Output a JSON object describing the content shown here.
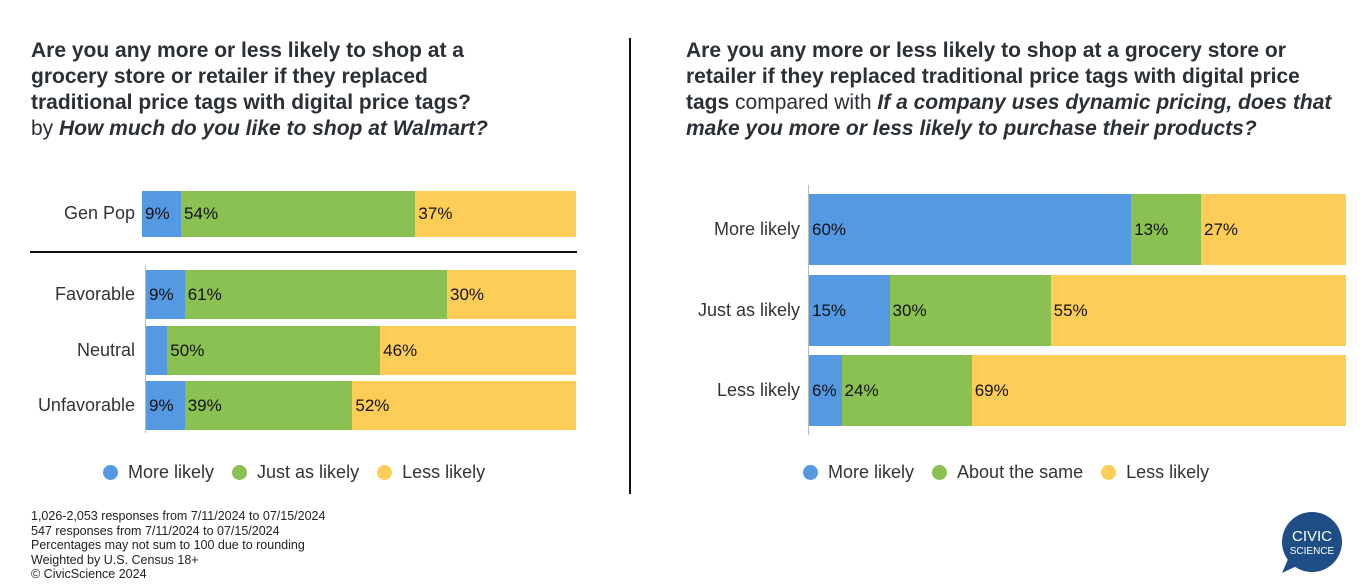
{
  "colors": {
    "more": "#5599e3",
    "same": "#8bc052",
    "less": "#fdcd57",
    "logo": "#1f4e86"
  },
  "left": {
    "title_bold": "Are you any more or less likely to shop at a grocery store or retailer if they replaced traditional price tags with digital price tags?",
    "title_by": "by ",
    "title_italic": "How much do you like to shop at Walmart?",
    "legend": [
      "More likely",
      "Just as likely",
      "Less likely"
    ]
  },
  "right": {
    "title_bold": "Are you any more or less likely to shop at a grocery store or retailer if they replaced traditional price tags with digital price tags",
    "title_mid": " compared with ",
    "title_italic": "If a company uses dynamic pricing, does that make you more or less likely to purchase their products?",
    "legend": [
      "More likely",
      "About the same",
      "Less likely"
    ]
  },
  "chart_data": [
    {
      "type": "bar",
      "orientation": "horizontal",
      "stacked": true,
      "categories": [
        "Gen Pop",
        "Favorable",
        "Neutral",
        "Unfavorable"
      ],
      "series": [
        {
          "name": "More likely",
          "values": [
            9,
            9,
            5,
            9
          ],
          "labels": [
            "9%",
            "9%",
            "",
            "9%"
          ]
        },
        {
          "name": "Just as likely",
          "values": [
            54,
            61,
            50,
            39
          ],
          "labels": [
            "54%",
            "61%",
            "50%",
            "39%"
          ]
        },
        {
          "name": "Less likely",
          "values": [
            37,
            30,
            46,
            52
          ],
          "labels": [
            "37%",
            "30%",
            "46%",
            "52%"
          ]
        }
      ],
      "legend": "bottom"
    },
    {
      "type": "bar",
      "orientation": "horizontal",
      "stacked": true,
      "categories": [
        "More likely",
        "Just as likely",
        "Less likely"
      ],
      "series": [
        {
          "name": "More likely",
          "values": [
            60,
            15,
            6
          ],
          "labels": [
            "60%",
            "15%",
            "6%"
          ]
        },
        {
          "name": "About the same",
          "values": [
            13,
            30,
            24
          ],
          "labels": [
            "13%",
            "30%",
            "24%"
          ]
        },
        {
          "name": "Less likely",
          "values": [
            27,
            55,
            69
          ],
          "labels": [
            "27%",
            "55%",
            "69%"
          ]
        }
      ],
      "legend": "bottom"
    }
  ],
  "footnotes": [
    "1,026-2,053 responses from 7/11/2024 to 07/15/2024",
    "547 responses from 7/11/2024 to 07/15/2024",
    "Percentages may not sum to 100 due to rounding",
    "Weighted by U.S. Census 18+",
    "© CivicScience 2024"
  ],
  "logo": {
    "line1": "CIVIC",
    "line2": "SCIENCE"
  }
}
